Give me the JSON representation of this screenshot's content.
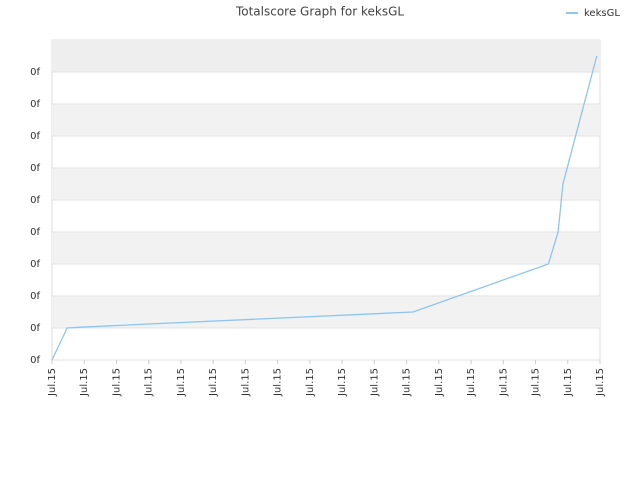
{
  "chart_data": {
    "type": "line",
    "title": "Totalscore Graph for keksGL",
    "x": [
      0,
      0.47,
      0.96,
      11.2,
      15.4,
      15.7,
      15.85,
      16.9
    ],
    "series": [
      {
        "name": "keksGL",
        "color": "#90c4ec",
        "values": [
          0,
          1.0,
          1.03,
          1.5,
          3.0,
          4.0,
          5.5,
          9.5
        ]
      }
    ],
    "xlim": [
      0,
      17
    ],
    "xticks": [
      {
        "value": 0,
        "label": "Jul.15"
      },
      {
        "value": 1,
        "label": "Jul.15"
      },
      {
        "value": 2,
        "label": "Jul.15"
      },
      {
        "value": 3,
        "label": "Jul.15"
      },
      {
        "value": 4,
        "label": "Jul.15"
      },
      {
        "value": 5,
        "label": "Jul.15"
      },
      {
        "value": 6,
        "label": "Jul.15"
      },
      {
        "value": 7,
        "label": "Jul.15"
      },
      {
        "value": 8,
        "label": "Jul.15"
      },
      {
        "value": 9,
        "label": "Jul.15"
      },
      {
        "value": 10,
        "label": "Jul.15"
      },
      {
        "value": 11,
        "label": "Jul.15"
      },
      {
        "value": 12,
        "label": "Jul.15"
      },
      {
        "value": 13,
        "label": "Jul.15"
      },
      {
        "value": 14,
        "label": "Jul.15"
      },
      {
        "value": 15,
        "label": "Jul.15"
      },
      {
        "value": 16,
        "label": "Jul.15"
      },
      {
        "value": 17,
        "label": "Jul.15"
      }
    ],
    "ylim": [
      0,
      10
    ],
    "yticks": [
      {
        "value": 0,
        "label": "0f"
      },
      {
        "value": 1,
        "label": "0f"
      },
      {
        "value": 2,
        "label": "0f"
      },
      {
        "value": 3,
        "label": "0f"
      },
      {
        "value": 4,
        "label": "0f"
      },
      {
        "value": 5,
        "label": "0f"
      },
      {
        "value": 6,
        "label": "0f"
      },
      {
        "value": 7,
        "label": "0f"
      },
      {
        "value": 8,
        "label": "0f"
      },
      {
        "value": 9,
        "label": "0f"
      }
    ],
    "grid": true,
    "legend": "top-right"
  }
}
